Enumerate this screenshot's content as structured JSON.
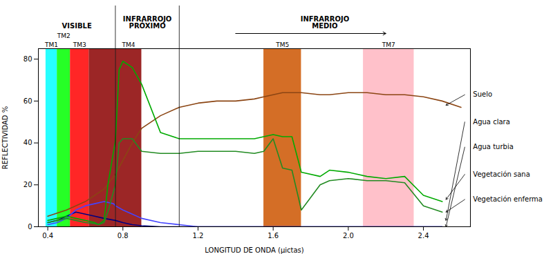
{
  "chart_data": {
    "type": "line",
    "xlabel": "LONGITUD DE ONDA (μictas)",
    "ylabel": "REFLECTIVIDAD %",
    "xlim": [
      0.35,
      2.65
    ],
    "ylim": [
      0,
      85
    ],
    "xticks": [
      0.4,
      0.8,
      1.2,
      1.6,
      {
        "value": 2.0,
        "label": "2.0"
      },
      2.4
    ],
    "yticks": [
      0,
      20,
      40,
      60,
      80
    ],
    "grid": false,
    "bands": [
      {
        "label": "TM1",
        "xmin": 0.39,
        "xmax": 0.45,
        "color": "#00FFFF"
      },
      {
        "label": "TM2",
        "xmin": 0.45,
        "xmax": 0.52,
        "color": "#00FF00"
      },
      {
        "label": "TM3",
        "xmin": 0.52,
        "xmax": 0.62,
        "color": "#FF0000"
      },
      {
        "xmin": 0.62,
        "xmax": 0.76,
        "color": "#8B0000"
      },
      {
        "label": "TM4",
        "xmin": 0.76,
        "xmax": 0.9,
        "color": "#8B0000"
      },
      {
        "label": "TM5",
        "xmin": 1.55,
        "xmax": 1.75,
        "color": "#CC5500"
      },
      {
        "label": "TM7",
        "xmin": 2.08,
        "xmax": 2.35,
        "color": "#FFB6C1"
      }
    ],
    "sections": [
      {
        "label": "VISIBLE",
        "xmin": 0.35,
        "xmax": 0.76
      },
      {
        "label": "INFRARROJO\nPRÓXIMO",
        "xmin": 0.76,
        "xmax": 1.1
      },
      {
        "label": "INFRARROJO\nMEDIO",
        "xmin": 1.1,
        "xmax": 2.65,
        "arrow": [
          1.4,
          2.2
        ]
      }
    ],
    "series": [
      {
        "name": "Suelo",
        "color": "#8B4513",
        "x": [
          0.4,
          0.5,
          0.6,
          0.7,
          0.76,
          0.85,
          0.9,
          1.0,
          1.1,
          1.2,
          1.3,
          1.4,
          1.5,
          1.55,
          1.65,
          1.75,
          1.85,
          1.9,
          2.0,
          2.1,
          2.2,
          2.3,
          2.4,
          2.5,
          2.6
        ],
        "values": [
          5,
          8,
          12,
          18,
          25,
          40,
          47,
          53,
          57,
          59,
          60,
          60,
          61,
          62,
          64,
          64,
          63,
          63,
          64,
          64,
          63,
          63,
          62,
          60,
          57
        ]
      },
      {
        "name": "Agua clara",
        "color": "#000080",
        "x": [
          0.4,
          0.45,
          0.5,
          0.55,
          0.6,
          0.65,
          0.7,
          0.76,
          0.8,
          0.85,
          0.9,
          1.0,
          1.1,
          1.2,
          1.5,
          2.0,
          2.5
        ],
        "values": [
          2,
          3,
          5,
          7,
          6,
          5,
          4,
          3,
          2,
          1,
          0.5,
          0,
          0,
          0,
          0,
          0,
          0
        ]
      },
      {
        "name": "Agua turbia",
        "color": "#4444FF",
        "x": [
          0.4,
          0.45,
          0.5,
          0.55,
          0.6,
          0.65,
          0.7,
          0.75,
          0.76,
          0.8,
          0.85,
          0.9,
          1.0,
          1.1,
          1.2,
          1.5,
          2.0,
          2.5
        ],
        "values": [
          1,
          2,
          4,
          8,
          10,
          11,
          12,
          11,
          10,
          8,
          6,
          4,
          2,
          1,
          0,
          0,
          0,
          0
        ]
      },
      {
        "name": "Vegetación sana",
        "color": "#00AA00",
        "x": [
          0.4,
          0.45,
          0.5,
          0.55,
          0.6,
          0.65,
          0.67,
          0.7,
          0.72,
          0.76,
          0.78,
          0.8,
          0.85,
          0.9,
          1.0,
          1.1,
          1.2,
          1.3,
          1.4,
          1.5,
          1.55,
          1.6,
          1.65,
          1.7,
          1.75,
          1.85,
          1.9,
          2.0,
          2.1,
          2.2,
          2.3,
          2.4,
          2.5
        ],
        "values": [
          3,
          4,
          5,
          4,
          3,
          2,
          1,
          3,
          20,
          41,
          75,
          79,
          76,
          68,
          45,
          42,
          42,
          42,
          42,
          42,
          43,
          44,
          43,
          43,
          26,
          24,
          27,
          26,
          24,
          23,
          24,
          15,
          12
        ]
      },
      {
        "name": "Vegetación enferma",
        "color": "#228B22",
        "x": [
          0.4,
          0.45,
          0.5,
          0.55,
          0.6,
          0.65,
          0.67,
          0.7,
          0.72,
          0.76,
          0.78,
          0.8,
          0.85,
          0.9,
          1.0,
          1.1,
          1.2,
          1.3,
          1.4,
          1.5,
          1.55,
          1.6,
          1.65,
          1.7,
          1.75,
          1.85,
          1.9,
          2.0,
          2.1,
          2.2,
          2.3,
          2.4,
          2.5
        ],
        "values": [
          2,
          3,
          4,
          3,
          2,
          1.5,
          1,
          2,
          7,
          20,
          40,
          42,
          42,
          36,
          35,
          35,
          36,
          36,
          36,
          35,
          36,
          42,
          28,
          27,
          8,
          20,
          22,
          23,
          22,
          22,
          21,
          10,
          7
        ]
      }
    ],
    "annotations": [
      {
        "text": "Suelo",
        "xy": [
          2.52,
          58
        ],
        "xytext": [
          2.62,
          63
        ]
      },
      {
        "text": "Agua clara",
        "xy": [
          2.52,
          3
        ],
        "xytext": [
          2.62,
          50
        ]
      },
      {
        "text": "Agua turbia",
        "xy": [
          2.52,
          0
        ],
        "xytext": [
          2.62,
          38
        ]
      },
      {
        "text": "Vegetación sana",
        "xy": [
          2.52,
          13
        ],
        "xytext": [
          2.62,
          25
        ]
      },
      {
        "text": "Vegetación enferma",
        "xy": [
          2.52,
          7
        ],
        "xytext": [
          2.62,
          13
        ]
      }
    ]
  }
}
